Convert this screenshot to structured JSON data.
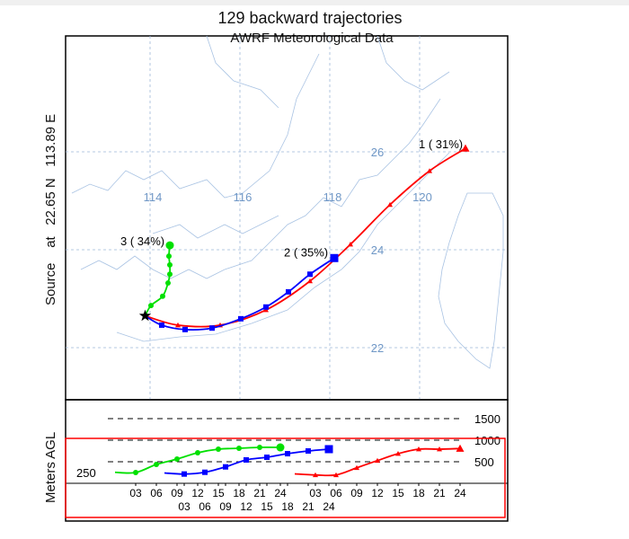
{
  "chart_data": {
    "type": "line",
    "title": "129 backward trajectories",
    "subtitle": "AWRF Meteorological Data",
    "source_label": "Source    at   22.65 N   113.89 E",
    "source": {
      "lon": 113.89,
      "lat": 22.65,
      "marker": "star"
    },
    "map": {
      "lon_ticks": [
        114,
        116,
        118,
        120
      ],
      "lat_ticks": [
        22,
        24,
        26
      ],
      "grid": true,
      "grid_color": "#9fb8d8",
      "label_color": "#6f97c6"
    },
    "trajectories": [
      {
        "label": "1 ( 31%)",
        "color": "#ff0000",
        "marker": "triangle",
        "lon": [
          113.89,
          114.62,
          115.56,
          116.58,
          117.56,
          118.46,
          119.34,
          120.22,
          121.02
        ],
        "lat": [
          22.65,
          22.46,
          22.46,
          22.77,
          23.36,
          24.11,
          24.92,
          25.61,
          26.07
        ]
      },
      {
        "label": "2 ( 35%)",
        "color": "#0000ff",
        "marker": "square",
        "lon": [
          113.89,
          114.26,
          114.78,
          115.38,
          116.02,
          116.58,
          117.08,
          117.56,
          118.1
        ],
        "lat": [
          22.65,
          22.46,
          22.37,
          22.4,
          22.59,
          22.83,
          23.14,
          23.5,
          23.83
        ]
      },
      {
        "label": "3 ( 34%)",
        "color": "#00e000",
        "marker": "circle",
        "lon": [
          113.89,
          114.02,
          114.28,
          114.4,
          114.44,
          114.44,
          114.42,
          114.44
        ],
        "lat": [
          22.65,
          22.86,
          23.05,
          23.32,
          23.5,
          23.69,
          23.87,
          24.09
        ]
      }
    ],
    "height_panel": {
      "ylabel": "Meters AGL",
      "y_ticks": [
        1500,
        1000,
        500
      ],
      "y_min_label": "250",
      "gridlines_dashed": [
        1500,
        1000,
        500
      ],
      "x_tick_labels": [
        "03",
        "06",
        "09",
        "12",
        "15",
        "18",
        "21",
        "24"
      ],
      "series": [
        {
          "color": "#00e000",
          "marker": "circle",
          "hours": [
            3,
            6,
            9,
            12,
            15,
            18,
            21,
            24
          ],
          "heights_m": [
            250,
            437,
            562,
            708,
            792,
            812,
            833,
            833
          ]
        },
        {
          "color": "#0000ff",
          "marker": "square",
          "hours": [
            3,
            6,
            9,
            12,
            15,
            18,
            21,
            24
          ],
          "heights_m": [
            215,
            256,
            381,
            542,
            604,
            687,
            750,
            792
          ]
        },
        {
          "color": "#ff0000",
          "marker": "triangle",
          "hours": [
            3,
            6,
            9,
            12,
            15,
            18,
            21,
            24
          ],
          "heights_m": [
            194,
            194,
            360,
            527,
            687,
            792,
            792,
            806
          ]
        }
      ]
    },
    "highlight_box_color": "#ff0000"
  }
}
